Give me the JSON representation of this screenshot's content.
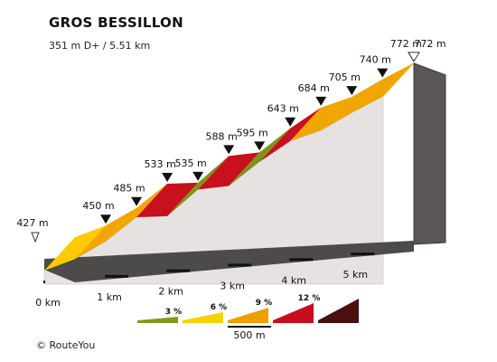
{
  "header": {
    "title": "GROS BESSILLON",
    "subtitle": "351 m D+ / 5.51 km"
  },
  "footer": {
    "copyright": "© RouteYou"
  },
  "chart_data": {
    "type": "area",
    "title": "GROS BESSILLON",
    "subtitle": "351 m D+ / 5.51 km",
    "xlabel": "",
    "ylabel": "",
    "x_unit": "km",
    "y_unit": "m",
    "xlim": [
      0,
      5.51
    ],
    "x_ticks": [
      {
        "value": 0,
        "label": "0 km"
      },
      {
        "value": 1,
        "label": "1 km"
      },
      {
        "value": 2,
        "label": "2 km"
      },
      {
        "value": 3,
        "label": "3 km"
      },
      {
        "value": 4,
        "label": "4 km"
      },
      {
        "value": 5,
        "label": "5 km"
      }
    ],
    "elevation_points": [
      {
        "x": 0.0,
        "y": 427,
        "label": "427 m",
        "marker": "start"
      },
      {
        "x": 0.5,
        "y": 450,
        "label": "450 m"
      },
      {
        "x": 1.0,
        "y": 485,
        "label": "485 m"
      },
      {
        "x": 1.5,
        "y": 533,
        "label": "533 m"
      },
      {
        "x": 2.0,
        "y": 535,
        "label": "535 m"
      },
      {
        "x": 2.5,
        "y": 588,
        "label": "588 m"
      },
      {
        "x": 3.0,
        "y": 595,
        "label": "595 m"
      },
      {
        "x": 3.5,
        "y": 643,
        "label": "643 m"
      },
      {
        "x": 4.0,
        "y": 684,
        "label": "684 m"
      },
      {
        "x": 4.5,
        "y": 705,
        "label": "705 m"
      },
      {
        "x": 5.0,
        "y": 740,
        "label": "740 m"
      },
      {
        "x": 5.5,
        "y": 772,
        "label": "772 m"
      },
      {
        "x": 5.51,
        "y": 772,
        "label": "772 m",
        "marker": "end"
      }
    ],
    "segment_classes": [
      "lt3",
      "3-6",
      "3-6",
      "9-12",
      "lt3",
      "9-12",
      "lt3",
      "9-12",
      "6-9",
      "3-6",
      "6-9",
      "6-9"
    ],
    "legend": {
      "items": [
        {
          "label": "3 %",
          "color": "#7f9a1e"
        },
        {
          "label": "6 %",
          "color": "#f7d200"
        },
        {
          "label": "9 %",
          "color": "#ed9f00"
        },
        {
          "label": "12 %",
          "color": "#c70d1c"
        },
        {
          "label": "",
          "color": "#4a1010"
        }
      ],
      "scale_label": "500 m"
    },
    "colors": {
      "lt3": "#ffcb00",
      "3-6": "#f0a500",
      "6-9": "#f0a500",
      "9-12": "#c8101e",
      "12+": "#4a1010",
      "low": "#7e9417",
      "wall_face": "#e7e2e2",
      "wall_edge": "#555555"
    }
  }
}
